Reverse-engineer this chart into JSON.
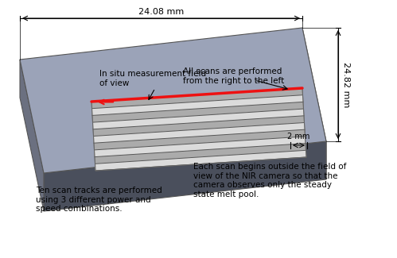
{
  "bg_color": "#ffffff",
  "substrate_top_color": "#9ba3b8",
  "substrate_left_color": "#6b7080",
  "substrate_bottom_color": "#4a4f5c",
  "substrate_right_color": "#c8ccda",
  "scan_stripe_color": "#666666",
  "scan_stripe_light": "#cccccc",
  "highlight_color": "#ee1111",
  "arrow_color": "#000000",
  "dim_width_text": "24.08 mm",
  "dim_height_text": "24.82 mm",
  "dim_2mm_text": "2 mm",
  "annotation_fov": "In situ measurement field\nof view",
  "annotation_scans": "All scans are performed\nfrom the right to the left",
  "annotation_ten": "Ten scan tracks are performed\nusing 3 different power and\nspeed combinations.",
  "annotation_each": "Each scan begins outside the field of\nview of the NIR camera so that the\ncamera observes only the steady\nstate melt pool.",
  "num_tracks": 10,
  "fontsize": 7.5
}
